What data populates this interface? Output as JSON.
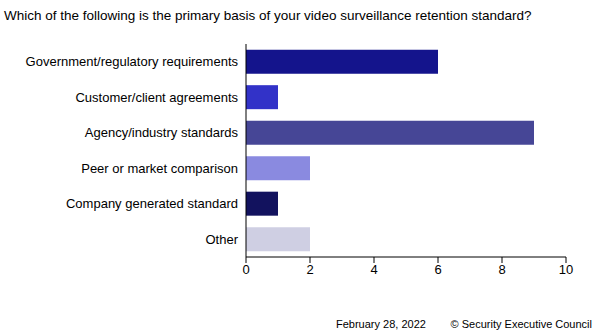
{
  "chart_data": {
    "type": "bar",
    "title": "Which of the following is the primary basis of your video surveillance retention standard?",
    "orientation": "horizontal",
    "categories": [
      "Government/regulatory requirements",
      "Customer/client agreements",
      "Agency/industry standards",
      "Peer or market comparison",
      "Company generated standard",
      "Other"
    ],
    "values": [
      6,
      1,
      9,
      2,
      1,
      2
    ],
    "colors": [
      "#14148c",
      "#3232c8",
      "#464696",
      "#8a8ae0",
      "#12125e",
      "#cfcfe3"
    ],
    "xlim": [
      0,
      10
    ],
    "xticks": [
      0,
      2,
      4,
      6,
      8,
      10
    ],
    "grid": false,
    "annotations": [
      "February 28, 2022",
      "© Security Executive Council"
    ]
  }
}
